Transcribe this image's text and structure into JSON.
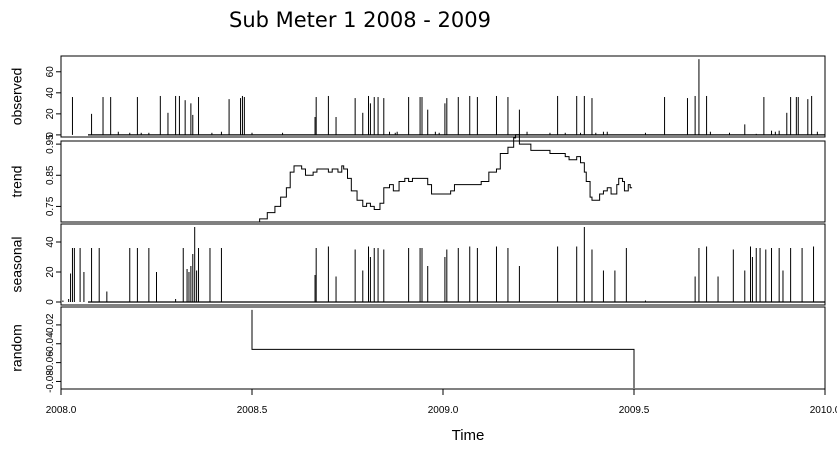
{
  "chart_data": {
    "type": "line",
    "title": "Sub Meter 1 2008 - 2009",
    "xlabel": "Time",
    "xlim": [
      2008.0,
      2010.0
    ],
    "xticks": [
      2008.0,
      2008.5,
      2009.0,
      2009.5,
      2010.0
    ],
    "xtick_labels": [
      "2008.0",
      "2008.5",
      "2009.0",
      "2009.5",
      "2010.0"
    ],
    "line_color": "#000000",
    "panels": [
      {
        "name": "observed",
        "ylabel": "observed",
        "ylim": [
          -2,
          75
        ],
        "yticks": [
          0,
          20,
          40,
          60
        ],
        "ytick_labels": [
          "0",
          "20",
          "40",
          "60"
        ],
        "baseline": 0,
        "spikes": [
          [
            2008.03,
            36
          ],
          [
            2008.08,
            20
          ],
          [
            2008.11,
            36
          ],
          [
            2008.15,
            3
          ],
          [
            2008.18,
            2
          ],
          [
            2008.21,
            2
          ],
          [
            2008.13,
            36
          ],
          [
            2008.2,
            36
          ],
          [
            2008.23,
            2
          ],
          [
            2008.26,
            37
          ],
          [
            2008.28,
            21
          ],
          [
            2008.3,
            37
          ],
          [
            2008.31,
            37
          ],
          [
            2008.325,
            33
          ],
          [
            2008.34,
            30
          ],
          [
            2008.345,
            19
          ],
          [
            2008.36,
            36
          ],
          [
            2008.395,
            2
          ],
          [
            2008.42,
            3
          ],
          [
            2008.44,
            34
          ],
          [
            2008.47,
            35
          ],
          [
            2008.475,
            37
          ],
          [
            2008.48,
            36
          ],
          [
            2008.5,
            2
          ],
          [
            2008.58,
            2
          ],
          [
            2008.665,
            17
          ],
          [
            2008.668,
            36
          ],
          [
            2008.7,
            37
          ],
          [
            2008.72,
            17
          ],
          [
            2008.77,
            35
          ],
          [
            2008.79,
            21
          ],
          [
            2008.805,
            37
          ],
          [
            2008.81,
            30
          ],
          [
            2008.82,
            36
          ],
          [
            2008.83,
            36
          ],
          [
            2008.845,
            35
          ],
          [
            2008.86,
            3
          ],
          [
            2008.875,
            2
          ],
          [
            2008.88,
            3
          ],
          [
            2008.91,
            36
          ],
          [
            2008.94,
            36
          ],
          [
            2008.945,
            36
          ],
          [
            2008.96,
            24
          ],
          [
            2008.98,
            3
          ],
          [
            2008.99,
            2
          ],
          [
            2009.005,
            30
          ],
          [
            2009.01,
            35
          ],
          [
            2009.04,
            36
          ],
          [
            2009.07,
            37
          ],
          [
            2009.09,
            36
          ],
          [
            2009.14,
            37
          ],
          [
            2009.17,
            36
          ],
          [
            2009.2,
            24
          ],
          [
            2009.22,
            3
          ],
          [
            2009.28,
            2
          ],
          [
            2009.3,
            37
          ],
          [
            2009.32,
            2
          ],
          [
            2009.35,
            37
          ],
          [
            2009.36,
            2
          ],
          [
            2009.37,
            37
          ],
          [
            2009.39,
            35
          ],
          [
            2009.4,
            2
          ],
          [
            2009.42,
            3
          ],
          [
            2009.43,
            3
          ],
          [
            2009.53,
            2
          ],
          [
            2009.58,
            36
          ],
          [
            2009.64,
            35
          ],
          [
            2009.66,
            37
          ],
          [
            2009.67,
            72
          ],
          [
            2009.69,
            37
          ],
          [
            2009.7,
            3
          ],
          [
            2009.75,
            2
          ],
          [
            2009.79,
            10
          ],
          [
            2009.82,
            1
          ],
          [
            2009.84,
            36
          ],
          [
            2009.86,
            4
          ],
          [
            2009.87,
            3
          ],
          [
            2009.88,
            4
          ],
          [
            2009.9,
            21
          ],
          [
            2009.91,
            36
          ],
          [
            2009.925,
            36
          ],
          [
            2009.93,
            36
          ],
          [
            2009.955,
            34
          ],
          [
            2009.965,
            37
          ],
          [
            2009.98,
            3
          ]
        ]
      },
      {
        "name": "trend",
        "ylabel": "trend",
        "ylim": [
          0.7,
          0.96
        ],
        "yticks": [
          0.75,
          0.85,
          0.95
        ],
        "ytick_labels": [
          "0.75",
          "0.85",
          "0.95"
        ],
        "series": [
          [
            2008.5,
            0.7
          ],
          [
            2008.52,
            0.71
          ],
          [
            2008.54,
            0.73
          ],
          [
            2008.56,
            0.75
          ],
          [
            2008.575,
            0.78
          ],
          [
            2008.59,
            0.81
          ],
          [
            2008.6,
            0.86
          ],
          [
            2008.61,
            0.88
          ],
          [
            2008.63,
            0.87
          ],
          [
            2008.64,
            0.85
          ],
          [
            2008.66,
            0.86
          ],
          [
            2008.67,
            0.87
          ],
          [
            2008.7,
            0.86
          ],
          [
            2008.71,
            0.87
          ],
          [
            2008.725,
            0.86
          ],
          [
            2008.735,
            0.88
          ],
          [
            2008.74,
            0.87
          ],
          [
            2008.75,
            0.84
          ],
          [
            2008.76,
            0.8
          ],
          [
            2008.775,
            0.77
          ],
          [
            2008.78,
            0.77
          ],
          [
            2008.79,
            0.75
          ],
          [
            2008.8,
            0.76
          ],
          [
            2008.81,
            0.75
          ],
          [
            2008.815,
            0.75
          ],
          [
            2008.82,
            0.74
          ],
          [
            2008.835,
            0.76
          ],
          [
            2008.84,
            0.76
          ],
          [
            2008.845,
            0.81
          ],
          [
            2008.86,
            0.82
          ],
          [
            2008.87,
            0.8
          ],
          [
            2008.885,
            0.83
          ],
          [
            2008.9,
            0.84
          ],
          [
            2008.91,
            0.83
          ],
          [
            2008.915,
            0.83
          ],
          [
            2008.92,
            0.84
          ],
          [
            2008.94,
            0.84
          ],
          [
            2008.96,
            0.82
          ],
          [
            2008.97,
            0.79
          ],
          [
            2009.01,
            0.79
          ],
          [
            2009.02,
            0.8
          ],
          [
            2009.03,
            0.82
          ],
          [
            2009.08,
            0.82
          ],
          [
            2009.1,
            0.83
          ],
          [
            2009.12,
            0.86
          ],
          [
            2009.14,
            0.87
          ],
          [
            2009.15,
            0.92
          ],
          [
            2009.17,
            0.94
          ],
          [
            2009.18,
            0.94
          ],
          [
            2009.185,
            0.97
          ],
          [
            2009.19,
            0.98
          ],
          [
            2009.2,
            0.95
          ],
          [
            2009.23,
            0.93
          ],
          [
            2009.27,
            0.93
          ],
          [
            2009.28,
            0.92
          ],
          [
            2009.32,
            0.91
          ],
          [
            2009.33,
            0.9
          ],
          [
            2009.345,
            0.9
          ],
          [
            2009.35,
            0.91
          ],
          [
            2009.36,
            0.89
          ],
          [
            2009.37,
            0.86
          ],
          [
            2009.375,
            0.83
          ],
          [
            2009.385,
            0.78
          ],
          [
            2009.39,
            0.77
          ],
          [
            2009.4,
            0.77
          ],
          [
            2009.41,
            0.79
          ],
          [
            2009.42,
            0.8
          ],
          [
            2009.43,
            0.81
          ],
          [
            2009.44,
            0.79
          ],
          [
            2009.45,
            0.79
          ],
          [
            2009.455,
            0.82
          ],
          [
            2009.46,
            0.84
          ],
          [
            2009.47,
            0.83
          ],
          [
            2009.475,
            0.8
          ],
          [
            2009.485,
            0.82
          ],
          [
            2009.49,
            0.81
          ],
          [
            2009.495,
            0.81
          ]
        ]
      },
      {
        "name": "seasonal",
        "ylabel": "seasonal",
        "ylim": [
          -2,
          52
        ],
        "yticks": [
          0,
          20,
          40
        ],
        "ytick_labels": [
          "0",
          "20",
          "40"
        ],
        "baseline": 0,
        "spikes": [
          [
            2008.005,
            1
          ],
          [
            2008.02,
            2
          ],
          [
            2008.025,
            19
          ],
          [
            2008.03,
            36
          ],
          [
            2008.035,
            36
          ],
          [
            2008.05,
            36
          ],
          [
            2008.06,
            20
          ],
          [
            2008.08,
            36
          ],
          [
            2008.1,
            36
          ],
          [
            2008.12,
            7
          ],
          [
            2008.18,
            36
          ],
          [
            2008.2,
            36
          ],
          [
            2008.23,
            36
          ],
          [
            2008.25,
            20
          ],
          [
            2008.3,
            2
          ],
          [
            2008.32,
            36
          ],
          [
            2008.33,
            22
          ],
          [
            2008.335,
            20
          ],
          [
            2008.34,
            24
          ],
          [
            2008.345,
            32
          ],
          [
            2008.35,
            50
          ],
          [
            2008.355,
            21
          ],
          [
            2008.36,
            36
          ],
          [
            2008.39,
            36
          ],
          [
            2008.42,
            36
          ],
          [
            2008.665,
            18
          ],
          [
            2008.668,
            36
          ],
          [
            2008.7,
            37
          ],
          [
            2008.72,
            17
          ],
          [
            2008.77,
            35
          ],
          [
            2008.79,
            21
          ],
          [
            2008.805,
            37
          ],
          [
            2008.81,
            30
          ],
          [
            2008.82,
            36
          ],
          [
            2008.83,
            36
          ],
          [
            2008.845,
            35
          ],
          [
            2008.91,
            36
          ],
          [
            2008.94,
            36
          ],
          [
            2008.945,
            36
          ],
          [
            2008.96,
            24
          ],
          [
            2009.005,
            30
          ],
          [
            2009.01,
            35
          ],
          [
            2009.04,
            36
          ],
          [
            2009.07,
            37
          ],
          [
            2009.09,
            36
          ],
          [
            2009.14,
            37
          ],
          [
            2009.17,
            36
          ],
          [
            2009.2,
            24
          ],
          [
            2009.3,
            37
          ],
          [
            2009.35,
            37
          ],
          [
            2009.37,
            50
          ],
          [
            2009.39,
            35
          ],
          [
            2009.42,
            21
          ],
          [
            2009.45,
            21
          ],
          [
            2009.48,
            36
          ],
          [
            2009.53,
            1
          ],
          [
            2009.66,
            17
          ],
          [
            2009.67,
            36
          ],
          [
            2009.69,
            37
          ],
          [
            2009.72,
            17
          ],
          [
            2009.76,
            35
          ],
          [
            2009.79,
            21
          ],
          [
            2009.805,
            37
          ],
          [
            2009.81,
            30
          ],
          [
            2009.82,
            36
          ],
          [
            2009.83,
            36
          ],
          [
            2009.845,
            35
          ],
          [
            2009.86,
            36
          ],
          [
            2009.88,
            36
          ],
          [
            2009.89,
            21
          ],
          [
            2009.91,
            36
          ],
          [
            2009.94,
            36
          ],
          [
            2009.97,
            37
          ]
        ]
      },
      {
        "name": "random",
        "ylabel": "random",
        "ylim": [
          -0.088,
          -0.001
        ],
        "yticks": [
          -0.08,
          -0.06,
          -0.04,
          -0.02
        ],
        "ytick_labels": [
          "-0.08",
          "-0.06",
          "-0.04",
          "-0.02"
        ],
        "series": [
          [
            2008.5,
            -0.004
          ],
          [
            2008.5,
            -0.046
          ],
          [
            2009.5,
            -0.046
          ],
          [
            2009.5,
            -0.087
          ]
        ]
      }
    ]
  }
}
